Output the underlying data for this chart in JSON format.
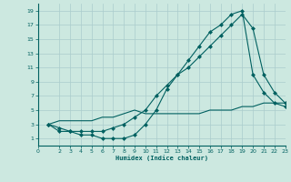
{
  "xlabel": "Humidex (Indice chaleur)",
  "bg_color": "#cce8e0",
  "grid_color": "#aacccc",
  "line_color": "#006060",
  "xlim": [
    0,
    23
  ],
  "ylim": [
    0,
    20
  ],
  "xticks": [
    0,
    2,
    3,
    4,
    5,
    6,
    7,
    8,
    9,
    10,
    11,
    12,
    13,
    14,
    15,
    16,
    17,
    18,
    19,
    20,
    21,
    22,
    23
  ],
  "yticks": [
    1,
    3,
    5,
    7,
    9,
    11,
    13,
    15,
    17,
    19
  ],
  "curve1_x": [
    1,
    2,
    3,
    4,
    5,
    6,
    7,
    8,
    9,
    10,
    11,
    12,
    13,
    14,
    15,
    16,
    17,
    18,
    19,
    20,
    21,
    22,
    23
  ],
  "curve1_y": [
    3,
    2,
    2,
    1.5,
    1.5,
    1,
    1,
    1,
    1.5,
    3,
    5,
    8,
    10,
    12,
    14,
    16,
    17,
    18.5,
    19,
    10,
    7.5,
    6,
    5.5
  ],
  "curve2_x": [
    1,
    2,
    3,
    4,
    5,
    6,
    7,
    8,
    9,
    10,
    11,
    12,
    13,
    14,
    15,
    16,
    17,
    18,
    19,
    20,
    21,
    22,
    23
  ],
  "curve2_y": [
    3,
    2.5,
    2,
    2,
    2,
    2,
    2.5,
    3,
    4,
    5,
    7,
    8.5,
    10,
    11,
    12.5,
    14,
    15.5,
    17,
    18.5,
    16.5,
    10,
    7.5,
    6
  ],
  "curve3_x": [
    1,
    2,
    3,
    4,
    5,
    6,
    7,
    8,
    9,
    10,
    11,
    12,
    13,
    14,
    15,
    16,
    17,
    18,
    19,
    20,
    21,
    22,
    23
  ],
  "curve3_y": [
    3,
    3.5,
    3.5,
    3.5,
    3.5,
    4,
    4,
    4.5,
    5,
    4.5,
    4.5,
    4.5,
    4.5,
    4.5,
    4.5,
    5,
    5,
    5,
    5.5,
    5.5,
    6,
    6,
    6
  ]
}
